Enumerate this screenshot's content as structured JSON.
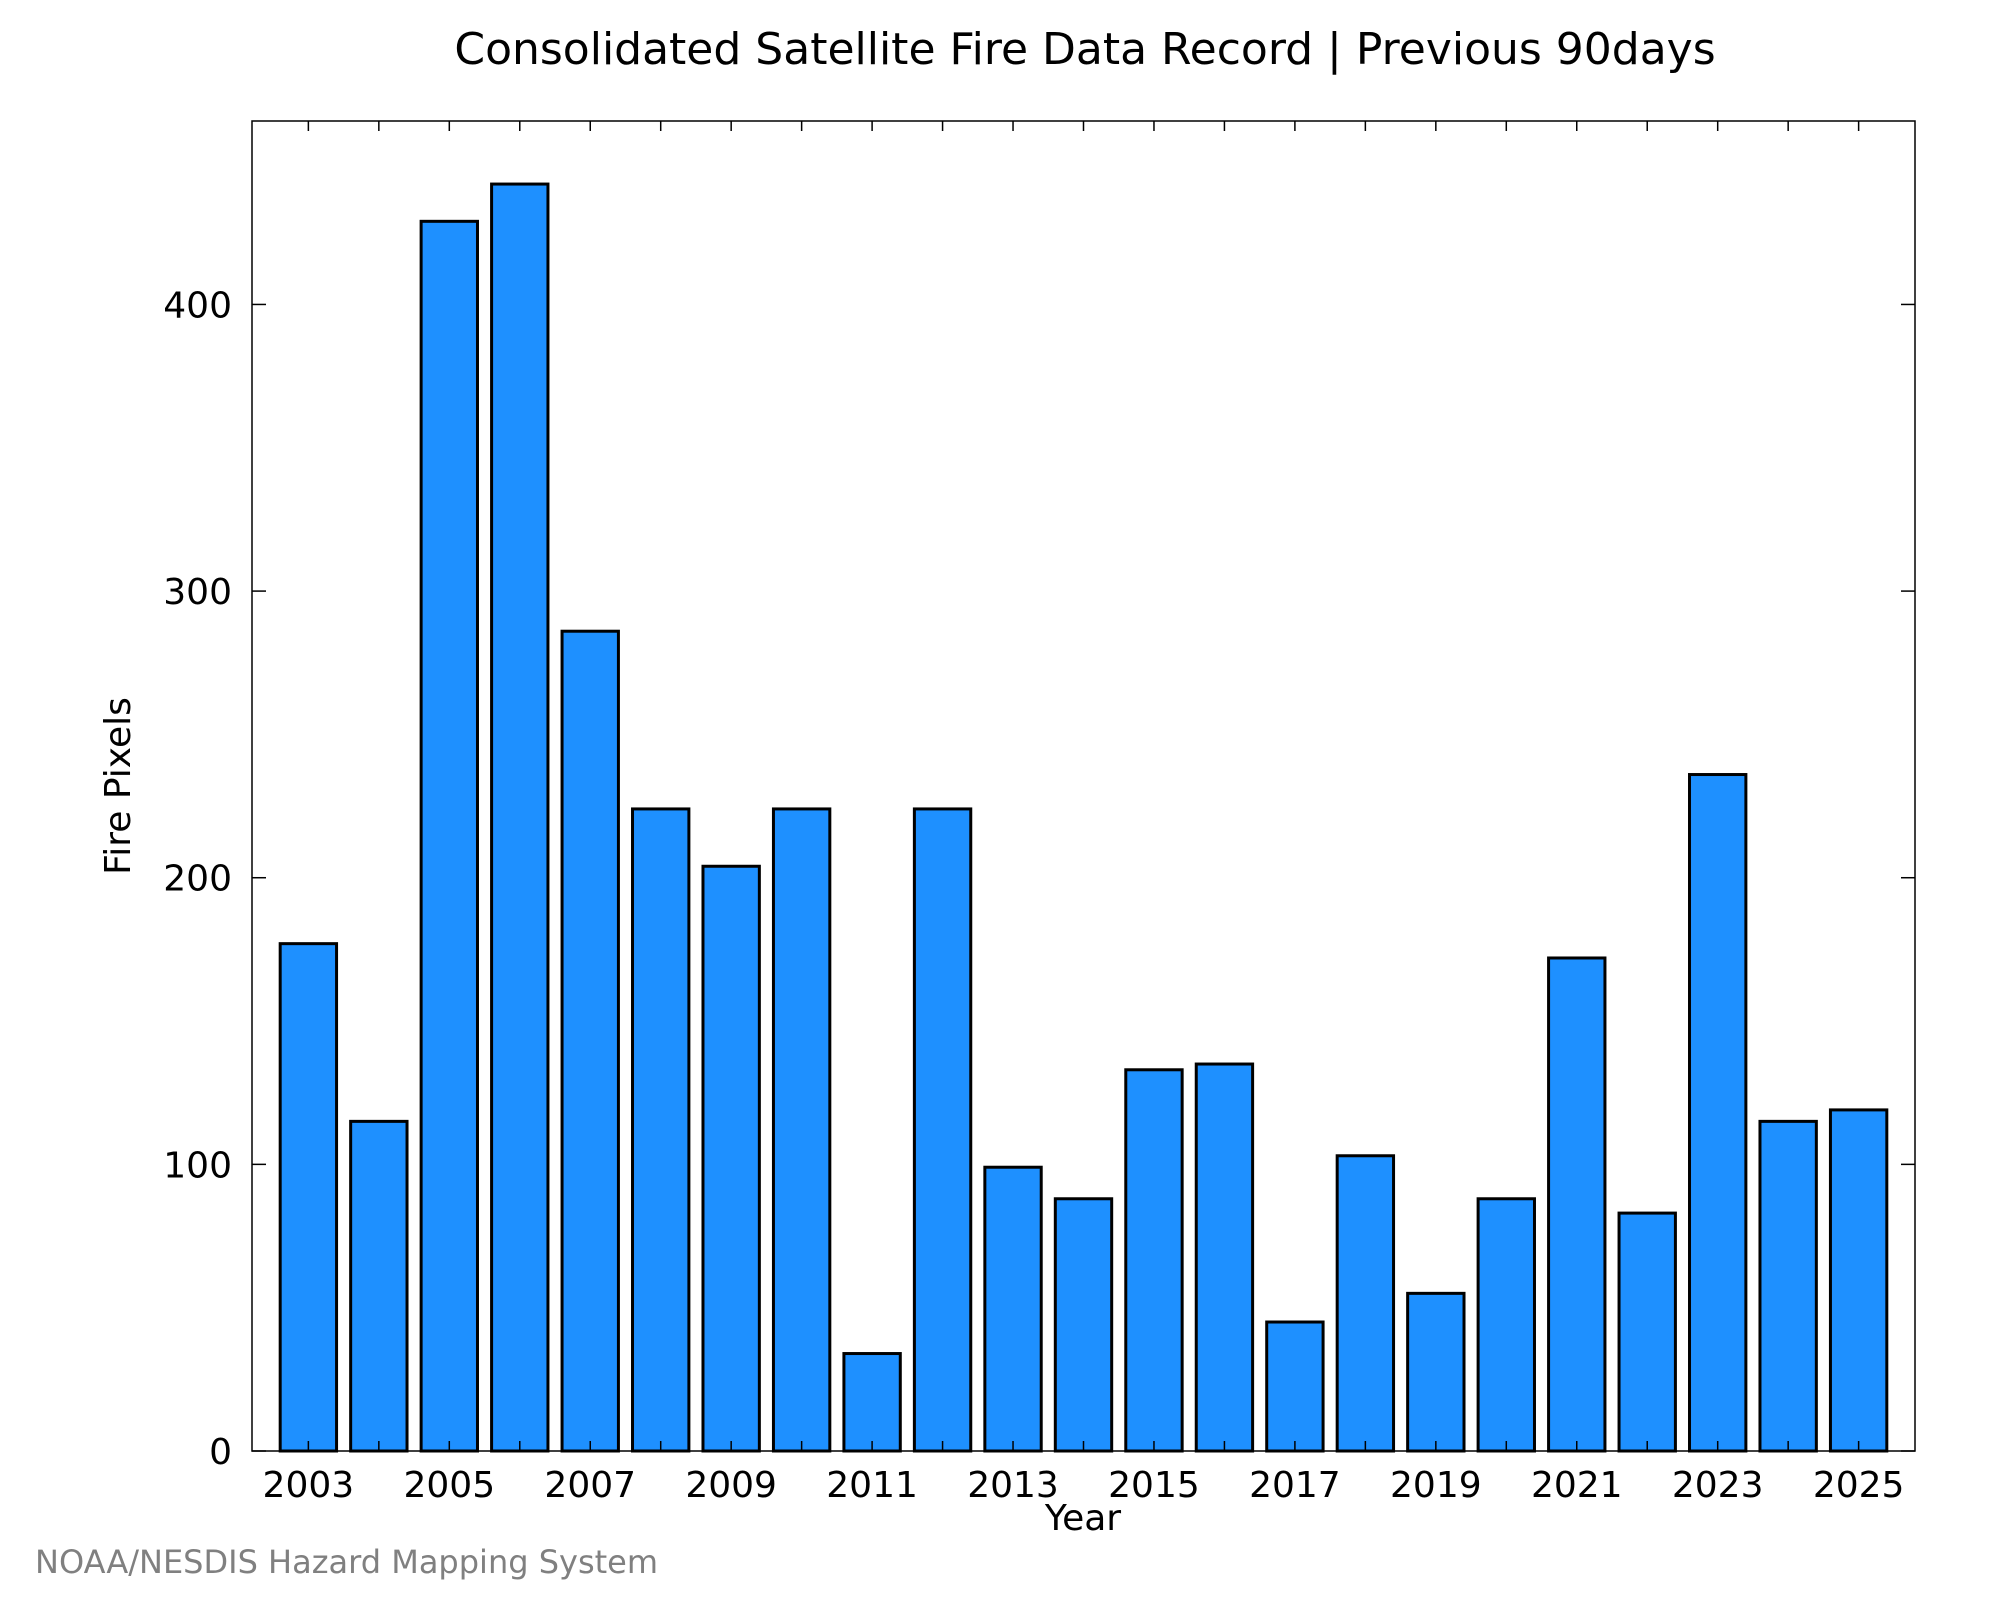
{
  "chart_data": {
    "type": "bar",
    "title": "Consolidated Satellite Fire Data Record | Previous 90days",
    "xlabel": "Year",
    "ylabel": "Fire Pixels",
    "categories": [
      "2003",
      "2004",
      "2005",
      "2006",
      "2007",
      "2008",
      "2009",
      "2010",
      "2011",
      "2012",
      "2013",
      "2014",
      "2015",
      "2016",
      "2017",
      "2018",
      "2019",
      "2020",
      "2021",
      "2022",
      "2023",
      "2024",
      "2025"
    ],
    "values": [
      177,
      115,
      429,
      442,
      286,
      224,
      204,
      224,
      34,
      224,
      99,
      88,
      133,
      135,
      45,
      103,
      55,
      88,
      172,
      83,
      236,
      115,
      119
    ],
    "x_tick_labels": [
      "2003",
      "2005",
      "2007",
      "2009",
      "2011",
      "2013",
      "2015",
      "2017",
      "2019",
      "2021",
      "2023",
      "2025"
    ],
    "y_ticks": [
      0,
      100,
      200,
      300,
      400
    ],
    "y_tick_labels": [
      "0",
      "100",
      "200",
      "300",
      "400"
    ],
    "ylim": [
      0,
      464
    ],
    "grid": false,
    "bar_color": "#1E90FF",
    "bar_edge_color": "#000000"
  },
  "credit": "NOAA/NESDIS Hazard Mapping System"
}
